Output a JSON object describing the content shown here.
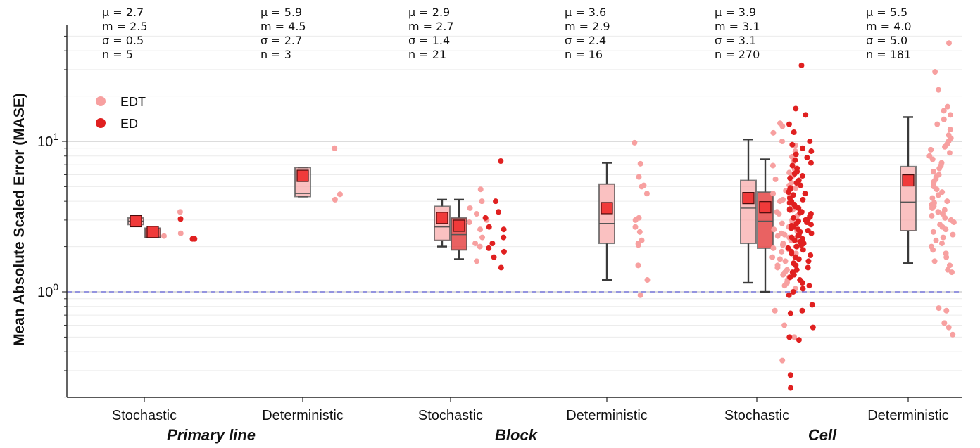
{
  "chart_data": {
    "type": "box",
    "ylabel": "Mean Absolute Scaled Error (MASE)",
    "y_scale": "log",
    "ylim": [
      0.2,
      60
    ],
    "y_major_ticks": [
      {
        "value": 1,
        "base": "10",
        "exp": "0"
      },
      {
        "value": 10,
        "base": "10",
        "exp": "1"
      }
    ],
    "reference_line": {
      "value": 1.0,
      "color": "#5555cc",
      "style": "dashed"
    },
    "categories": [
      "Stochastic",
      "Deterministic",
      "Stochastic",
      "Deterministic",
      "Stochastic",
      "Deterministic"
    ],
    "groups": [
      "Primary line",
      "Block",
      "Cell"
    ],
    "series": [
      {
        "name": "EDT",
        "color": "#f7a0a0"
      },
      {
        "name": "ED",
        "color": "#e02020"
      }
    ],
    "stats": [
      {
        "mu": "μ  = 2.7",
        "median": "m = 2.5",
        "sigma": "σ  = 0.5",
        "n": "n  = 5"
      },
      {
        "mu": "μ  = 5.9",
        "median": "m = 4.5",
        "sigma": "σ  = 2.7",
        "n": "n  = 3"
      },
      {
        "mu": "μ  = 2.9",
        "median": "m = 2.7",
        "sigma": "σ  = 1.4",
        "n": "n  = 21"
      },
      {
        "mu": "μ  = 3.6",
        "median": "m = 2.9",
        "sigma": "σ  = 2.4",
        "n": "n  = 16"
      },
      {
        "mu": "μ  = 3.9",
        "median": "m = 3.1",
        "sigma": "σ  = 3.1",
        "n": "n  = 270"
      },
      {
        "mu": "μ  = 5.5",
        "median": "m = 4.0",
        "sigma": "σ  = 5.0",
        "n": "n  = 181"
      }
    ],
    "boxes": [
      {
        "cat": 0,
        "series": "EDT",
        "whislo": 2.8,
        "q1": 2.8,
        "med": 2.95,
        "q3": 3.1,
        "whishi": 3.1,
        "mean": 2.95
      },
      {
        "cat": 0,
        "series": "ED",
        "whislo": 2.3,
        "q1": 2.3,
        "med": 2.3,
        "q3": 2.65,
        "whishi": 2.65,
        "mean": 2.5
      },
      {
        "cat": 1,
        "series": "EDT",
        "whislo": 4.3,
        "q1": 4.3,
        "med": 4.5,
        "q3": 6.7,
        "whishi": 6.7,
        "mean": 5.9
      },
      {
        "cat": 2,
        "series": "EDT",
        "whislo": 2.0,
        "q1": 2.2,
        "med": 2.7,
        "q3": 3.7,
        "whishi": 4.1,
        "mean": 3.1
      },
      {
        "cat": 2,
        "series": "ED",
        "whislo": 1.65,
        "q1": 1.9,
        "med": 2.4,
        "q3": 3.1,
        "whishi": 4.1,
        "mean": 2.75
      },
      {
        "cat": 3,
        "series": "EDT",
        "whislo": 1.2,
        "q1": 2.1,
        "med": 2.85,
        "q3": 5.2,
        "whishi": 7.2,
        "mean": 3.6
      },
      {
        "cat": 4,
        "series": "EDT",
        "whislo": 1.15,
        "q1": 2.1,
        "med": 3.6,
        "q3": 5.5,
        "whishi": 10.3,
        "mean": 4.2
      },
      {
        "cat": 4,
        "series": "ED",
        "whislo": 1.0,
        "q1": 1.95,
        "med": 2.95,
        "q3": 4.6,
        "whishi": 7.6,
        "mean": 3.65
      },
      {
        "cat": 5,
        "series": "EDT",
        "whislo": 1.55,
        "q1": 2.55,
        "med": 3.95,
        "q3": 6.8,
        "whishi": 14.5,
        "mean": 5.5
      }
    ],
    "points": [
      {
        "cat": 0,
        "series": "EDT",
        "values": [
          3.4,
          2.45,
          2.35
        ]
      },
      {
        "cat": 0,
        "series": "ED",
        "values": [
          3.05,
          2.25,
          2.25
        ]
      },
      {
        "cat": 1,
        "series": "EDT",
        "values": [
          9.0,
          4.45,
          4.1
        ]
      },
      {
        "cat": 2,
        "series": "EDT",
        "values": [
          4.8,
          4.0,
          3.6,
          3.3,
          3.0,
          2.9,
          2.6,
          2.3,
          2.1,
          2.0,
          1.6
        ]
      },
      {
        "cat": 2,
        "series": "ED",
        "values": [
          7.4,
          4.0,
          3.4,
          3.1,
          2.7,
          2.6,
          2.3,
          2.1,
          1.95,
          1.85,
          1.7,
          1.45
        ]
      },
      {
        "cat": 3,
        "series": "EDT",
        "values": [
          9.8,
          7.1,
          5.8,
          5.1,
          5.0,
          4.5,
          3.1,
          3.0,
          2.7,
          2.5,
          2.2,
          2.1,
          2.05,
          1.5,
          1.2,
          0.95
        ]
      },
      {
        "cat": 4,
        "series": "EDT",
        "values": [
          13.2,
          12.6,
          11.4,
          10.0,
          9.4,
          8.6,
          7.9,
          7.4,
          6.9,
          6.5,
          6.2,
          5.9,
          5.6,
          5.3,
          5.1,
          4.9,
          4.7,
          4.5,
          4.3,
          4.1,
          4.0,
          3.8,
          3.7,
          3.6,
          3.5,
          3.4,
          3.3,
          3.2,
          3.1,
          3.0,
          2.9,
          2.85,
          2.8,
          2.7,
          2.6,
          2.55,
          2.5,
          2.45,
          2.4,
          2.35,
          2.3,
          2.25,
          2.2,
          2.1,
          2.05,
          2.0,
          1.95,
          1.9,
          1.85,
          1.8,
          1.7,
          1.65,
          1.6,
          1.55,
          1.5,
          1.45,
          1.4,
          1.35,
          1.3,
          1.25,
          1.2,
          1.15,
          1.1,
          1.05,
          0.75,
          0.6,
          0.5,
          0.35
        ]
      },
      {
        "cat": 4,
        "series": "ED",
        "values": [
          32.0,
          16.5,
          15.0,
          13.0,
          11.5,
          10.0,
          9.5,
          9.0,
          8.6,
          8.2,
          7.8,
          7.5,
          7.2,
          6.9,
          6.6,
          6.3,
          6.1,
          5.9,
          5.7,
          5.5,
          5.3,
          5.1,
          4.9,
          4.8,
          4.6,
          4.5,
          4.4,
          4.2,
          4.1,
          4.0,
          3.9,
          3.8,
          3.7,
          3.6,
          3.55,
          3.5,
          3.4,
          3.35,
          3.3,
          3.2,
          3.15,
          3.1,
          3.05,
          3.0,
          2.95,
          2.9,
          2.85,
          2.8,
          2.75,
          2.7,
          2.65,
          2.6,
          2.55,
          2.5,
          2.45,
          2.4,
          2.35,
          2.3,
          2.25,
          2.2,
          2.15,
          2.1,
          2.05,
          2.0,
          1.95,
          1.9,
          1.85,
          1.8,
          1.75,
          1.7,
          1.65,
          1.6,
          1.55,
          1.5,
          1.45,
          1.4,
          1.35,
          1.3,
          1.25,
          1.2,
          1.15,
          1.1,
          1.05,
          1.0,
          0.95,
          0.82,
          0.75,
          0.72,
          0.58,
          0.5,
          0.48,
          0.28,
          0.23
        ]
      },
      {
        "cat": 5,
        "series": "EDT",
        "values": [
          45.0,
          29.0,
          22.0,
          17.0,
          16.0,
          15.0,
          14.0,
          13.0,
          12.0,
          11.0,
          10.5,
          10.0,
          9.6,
          9.2,
          8.8,
          8.4,
          8.0,
          7.6,
          7.2,
          6.9,
          6.6,
          6.3,
          6.0,
          5.8,
          5.6,
          5.4,
          5.2,
          5.0,
          4.8,
          4.6,
          4.4,
          4.2,
          4.0,
          3.9,
          3.8,
          3.7,
          3.6,
          3.5,
          3.4,
          3.3,
          3.2,
          3.1,
          3.0,
          2.9,
          2.8,
          2.7,
          2.6,
          2.5,
          2.4,
          2.3,
          2.2,
          2.1,
          2.0,
          1.9,
          1.8,
          1.7,
          1.6,
          1.5,
          1.4,
          1.35,
          0.78,
          0.75,
          0.62,
          0.58,
          0.52
        ]
      }
    ],
    "legend": {
      "position": "upper-left",
      "entries": [
        "EDT",
        "ED"
      ]
    }
  }
}
